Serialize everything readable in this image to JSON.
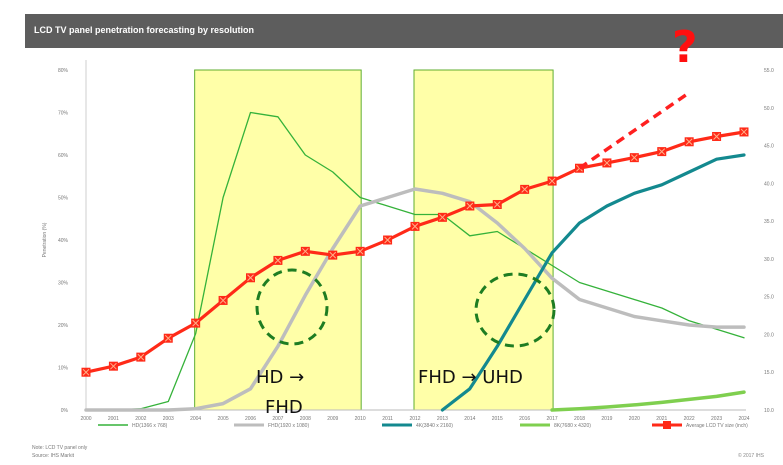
{
  "chart_data": {
    "type": "line",
    "title": "LCD TV panel penetration forecasting by resolution",
    "ylabel": "Penetration (%)",
    "x": [
      "2000",
      "2001",
      "2002",
      "2003",
      "2004",
      "2005",
      "2006",
      "2007",
      "2008",
      "2009",
      "2010",
      "2011",
      "2012",
      "2013",
      "2014",
      "2015",
      "2016",
      "2017",
      "2018",
      "2019",
      "2020",
      "2021",
      "2022",
      "2023",
      "2024"
    ],
    "ylim": [
      0,
      80
    ],
    "y_ticks": [
      "0%",
      "10%",
      "20%",
      "30%",
      "40%",
      "50%",
      "60%",
      "70%",
      "80%"
    ],
    "y2lim": [
      10,
      55
    ],
    "y2_ticks": [
      "10.0",
      "15.0",
      "20.0",
      "25.0",
      "30.0",
      "35.0",
      "40.0",
      "45.0",
      "50.0",
      "55.0"
    ],
    "series": [
      {
        "name": "HD(1366 x 768)",
        "axis": "left",
        "color": "#35b23a",
        "values": [
          0,
          0,
          0.3,
          2,
          18,
          50,
          70,
          69,
          60,
          56,
          50,
          48,
          46,
          46,
          41,
          42,
          38,
          34,
          30,
          28,
          26,
          24,
          21,
          19,
          17
        ]
      },
      {
        "name": "FHD(1920 x 1080)",
        "axis": "left",
        "color": "#bdbdbd",
        "values": [
          0,
          0,
          0,
          0,
          0.3,
          1.5,
          5,
          15,
          27,
          38,
          48,
          50,
          52,
          51,
          49,
          44,
          38,
          31,
          26,
          24,
          22,
          21,
          20,
          19.5,
          19.5
        ]
      },
      {
        "name": "4K(3840 x 2160)",
        "axis": "left",
        "color": "#13898f",
        "values": [
          null,
          null,
          null,
          null,
          null,
          null,
          null,
          null,
          null,
          null,
          null,
          null,
          null,
          0,
          5,
          15,
          26,
          37,
          44,
          48,
          51,
          53,
          56,
          59,
          60
        ]
      },
      {
        "name": "8K(7680 x 4320)",
        "axis": "left",
        "color": "#7fcf4f",
        "values": [
          null,
          null,
          null,
          null,
          null,
          null,
          null,
          null,
          null,
          null,
          null,
          null,
          null,
          null,
          null,
          null,
          null,
          0,
          0.3,
          0.7,
          1.2,
          1.8,
          2.5,
          3.2,
          4.2
        ]
      },
      {
        "name": "Average LCD TV size (inch)",
        "axis": "right",
        "color": "#ff2a18",
        "values": [
          15.0,
          15.8,
          17.0,
          19.5,
          21.5,
          24.5,
          27.5,
          29.8,
          31.0,
          30.5,
          31.0,
          32.5,
          34.3,
          35.5,
          37.0,
          37.2,
          39.2,
          40.3,
          42.0,
          42.7,
          43.4,
          44.2,
          45.5,
          46.2,
          46.8
        ]
      }
    ],
    "forecast_line": {
      "from": [
        2018,
        42.0
      ],
      "to": [
        2022,
        52.0
      ]
    },
    "annotations": [
      "HD → FHD",
      "FHD → UHD",
      "?"
    ],
    "shaded_ranges": [
      [
        2004,
        2010
      ],
      [
        2012,
        2017
      ]
    ],
    "legend_position": "bottom",
    "grid": false
  },
  "notes": {
    "line1": "Note: LCD TV panel only",
    "line2": "Source: IHS Markit",
    "copyright": "© 2017 IHS"
  },
  "colors": {
    "title_bar": "#5d5d5d",
    "highlight": "#ffff99",
    "circle": "#1e7d22"
  }
}
